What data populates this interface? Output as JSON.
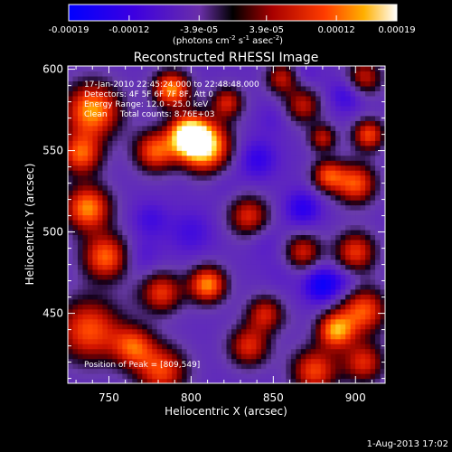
{
  "chart_data": {
    "type": "heatmap",
    "title": "Reconstructed RHESSI Image",
    "xlabel": "Heliocentric X (arcsec)",
    "ylabel": "Heliocentric Y (arcsec)",
    "xlim": [
      725,
      918
    ],
    "ylim": [
      407,
      602
    ],
    "x_ticks": [
      750,
      800,
      850,
      900
    ],
    "y_ticks": [
      450,
      500,
      550,
      600
    ],
    "colorbar": {
      "min": -0.00019,
      "max": 0.00019,
      "ticks": [
        -0.00019,
        -0.00012,
        -3.9e-05,
        3.9e-05,
        0.00012,
        0.00019
      ],
      "tick_labels": [
        "-0.00019",
        "-0.00012",
        "-3.9e-05",
        "3.9e-05",
        "0.00012",
        "0.00019"
      ],
      "unit_parts": [
        "(photons cm",
        "-2",
        " s",
        "-1",
        " asec",
        "-2",
        ")"
      ]
    },
    "info_lines": [
      "17-Jan-2010 22:45:24.000 to 22:48:48.000",
      "Detectors: 4F 5F 6F 7F 8F, Att 0",
      "Energy Range: 12.0 - 25.0 keV",
      "Clean     Total counts: 8.76E+03"
    ],
    "peak_label": "Position of Peak = [809,549]",
    "peak_position": [
      809,
      549
    ],
    "blobs": [
      {
        "x": 808,
        "y": 553,
        "r": 11,
        "v": 1.0
      },
      {
        "x": 798,
        "y": 560,
        "r": 8,
        "v": 0.85
      },
      {
        "x": 788,
        "y": 588,
        "r": 8,
        "v": 0.7
      },
      {
        "x": 778,
        "y": 550,
        "r": 9,
        "v": 0.55
      },
      {
        "x": 740,
        "y": 575,
        "r": 12,
        "v": 0.75
      },
      {
        "x": 733,
        "y": 548,
        "r": 9,
        "v": 0.55
      },
      {
        "x": 737,
        "y": 515,
        "r": 10,
        "v": 0.7
      },
      {
        "x": 748,
        "y": 485,
        "r": 10,
        "v": 0.6
      },
      {
        "x": 738,
        "y": 440,
        "r": 14,
        "v": 0.55
      },
      {
        "x": 782,
        "y": 415,
        "r": 11,
        "v": 0.5
      },
      {
        "x": 810,
        "y": 468,
        "r": 8,
        "v": 0.7
      },
      {
        "x": 782,
        "y": 463,
        "r": 9,
        "v": 0.45
      },
      {
        "x": 765,
        "y": 430,
        "r": 9,
        "v": 0.45
      },
      {
        "x": 835,
        "y": 430,
        "r": 9,
        "v": 0.4
      },
      {
        "x": 845,
        "y": 450,
        "r": 8,
        "v": 0.35
      },
      {
        "x": 868,
        "y": 488,
        "r": 8,
        "v": 0.35
      },
      {
        "x": 900,
        "y": 488,
        "r": 9,
        "v": 0.45
      },
      {
        "x": 905,
        "y": 452,
        "r": 10,
        "v": 0.55
      },
      {
        "x": 888,
        "y": 440,
        "r": 8,
        "v": 0.7
      },
      {
        "x": 875,
        "y": 415,
        "r": 10,
        "v": 0.5
      },
      {
        "x": 905,
        "y": 420,
        "r": 9,
        "v": 0.4
      },
      {
        "x": 900,
        "y": 530,
        "r": 9,
        "v": 0.55
      },
      {
        "x": 883,
        "y": 535,
        "r": 7,
        "v": 0.45
      },
      {
        "x": 908,
        "y": 560,
        "r": 7,
        "v": 0.5
      },
      {
        "x": 905,
        "y": 595,
        "r": 8,
        "v": 0.35
      },
      {
        "x": 868,
        "y": 578,
        "r": 8,
        "v": 0.3
      },
      {
        "x": 880,
        "y": 558,
        "r": 6,
        "v": 0.3
      },
      {
        "x": 835,
        "y": 510,
        "r": 9,
        "v": 0.4
      },
      {
        "x": 822,
        "y": 580,
        "r": 7,
        "v": 0.35
      },
      {
        "x": 855,
        "y": 595,
        "r": 7,
        "v": 0.3
      },
      {
        "x": 800,
        "y": 500,
        "r": 10,
        "v": -0.6
      },
      {
        "x": 775,
        "y": 508,
        "r": 8,
        "v": -0.6
      },
      {
        "x": 770,
        "y": 485,
        "r": 8,
        "v": -0.55
      },
      {
        "x": 840,
        "y": 545,
        "r": 9,
        "v": -0.7
      },
      {
        "x": 868,
        "y": 515,
        "r": 8,
        "v": -0.75
      },
      {
        "x": 880,
        "y": 468,
        "r": 8,
        "v": -0.95
      },
      {
        "x": 895,
        "y": 470,
        "r": 6,
        "v": -0.55
      },
      {
        "x": 895,
        "y": 585,
        "r": 8,
        "v": -0.7
      },
      {
        "x": 870,
        "y": 598,
        "r": 6,
        "v": -0.5
      },
      {
        "x": 845,
        "y": 495,
        "r": 8,
        "v": -0.5
      },
      {
        "x": 820,
        "y": 530,
        "r": 7,
        "v": -0.45
      },
      {
        "x": 795,
        "y": 532,
        "r": 6,
        "v": -0.4
      },
      {
        "x": 800,
        "y": 580,
        "r": 6,
        "v": -0.3
      },
      {
        "x": 855,
        "y": 475,
        "r": 7,
        "v": -0.45
      },
      {
        "x": 850,
        "y": 570,
        "r": 7,
        "v": -0.5
      },
      {
        "x": 860,
        "y": 445,
        "r": 5,
        "v": -0.3
      },
      {
        "x": 790,
        "y": 440,
        "r": 6,
        "v": -0.35
      },
      {
        "x": 765,
        "y": 460,
        "r": 5,
        "v": -0.3
      }
    ],
    "baseline": -0.35,
    "limb": {
      "x0": 1036,
      "y0": -6,
      "r": 980
    }
  },
  "footer_date": "1-Aug-2013 17:02"
}
